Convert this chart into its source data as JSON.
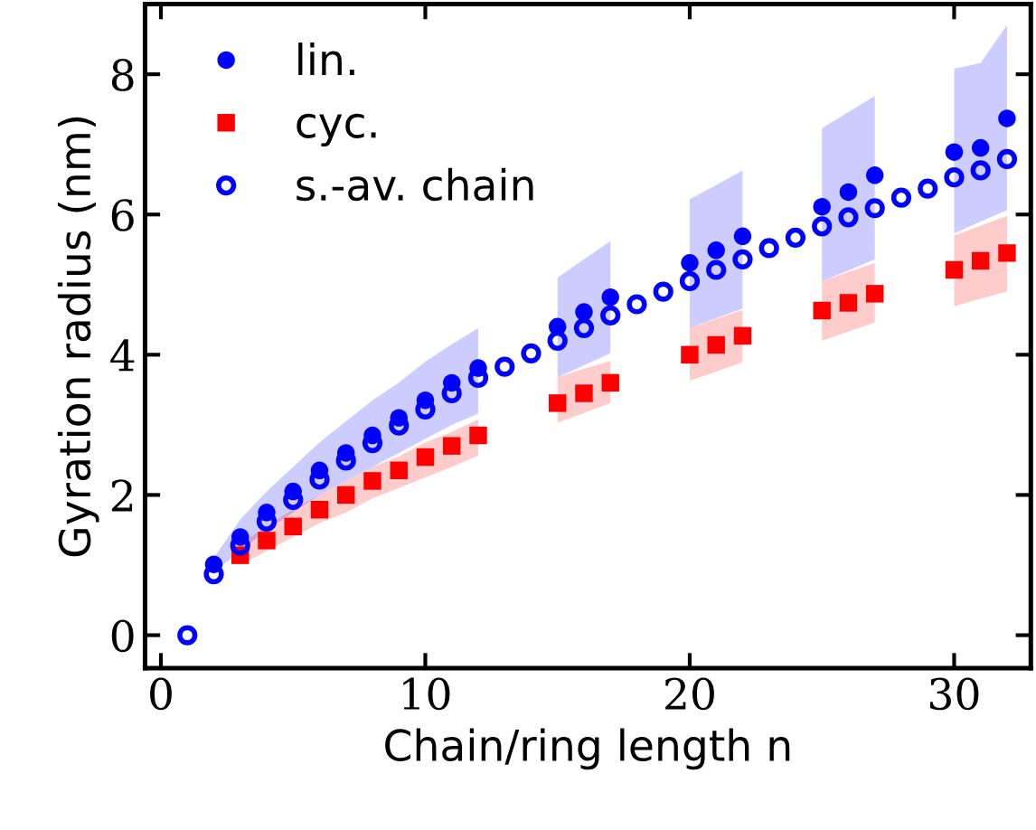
{
  "chart_data": {
    "type": "scatter",
    "xlabel": "Chain/ring length n",
    "ylabel": "Gyration radius (nm)",
    "xlim": [
      -0.6,
      32.9
    ],
    "ylim": [
      -0.47,
      9.0
    ],
    "xticks": [
      0,
      10,
      20,
      30
    ],
    "yticks": [
      0,
      2,
      4,
      6,
      8
    ],
    "grid": false,
    "legend": "top left",
    "series": [
      {
        "name": "lin.",
        "color": "#0000ff",
        "marker": "circle",
        "x": [
          2,
          3,
          4,
          5,
          6,
          7,
          8,
          9,
          10,
          11,
          12,
          15,
          16,
          17,
          20,
          21,
          22,
          25,
          26,
          27,
          30,
          31,
          32
        ],
        "values": [
          1.01,
          1.4,
          1.75,
          2.05,
          2.35,
          2.6,
          2.85,
          3.1,
          3.35,
          3.6,
          3.81,
          4.4,
          4.61,
          4.82,
          5.31,
          5.49,
          5.69,
          6.11,
          6.32,
          6.56,
          6.89,
          6.95,
          7.37
        ],
        "lower": [
          0.9,
          1.2,
          1.5,
          1.75,
          2.0,
          2.2,
          2.4,
          2.6,
          2.8,
          3.0,
          3.16,
          3.68,
          3.85,
          4.02,
          4.38,
          4.52,
          4.66,
          5.05,
          5.2,
          5.36,
          5.73,
          5.9,
          6.06
        ],
        "upper": [
          1.1,
          1.65,
          2.05,
          2.4,
          2.75,
          3.05,
          3.35,
          3.6,
          3.9,
          4.15,
          4.38,
          5.1,
          5.36,
          5.62,
          6.22,
          6.42,
          6.63,
          7.23,
          7.46,
          7.69,
          8.08,
          8.16,
          8.7
        ]
      },
      {
        "name": "cyc.",
        "color": "#ff0000",
        "marker": "square",
        "x": [
          3,
          4,
          5,
          6,
          7,
          8,
          9,
          10,
          11,
          12,
          15,
          16,
          17,
          20,
          21,
          22,
          25,
          26,
          27,
          30,
          31,
          32
        ],
        "values": [
          1.14,
          1.35,
          1.55,
          1.79,
          2.0,
          2.2,
          2.35,
          2.54,
          2.7,
          2.85,
          3.31,
          3.45,
          3.6,
          4.0,
          4.14,
          4.27,
          4.63,
          4.74,
          4.87,
          5.21,
          5.34,
          5.45
        ],
        "lower": [
          1.0,
          1.2,
          1.4,
          1.6,
          1.75,
          1.95,
          2.1,
          2.25,
          2.4,
          2.56,
          3.03,
          3.17,
          3.31,
          3.63,
          3.76,
          3.89,
          4.2,
          4.33,
          4.46,
          4.69,
          4.8,
          4.9
        ],
        "upper": [
          1.3,
          1.55,
          1.8,
          2.0,
          2.2,
          2.4,
          2.55,
          2.75,
          2.9,
          3.08,
          3.68,
          3.8,
          3.91,
          4.38,
          4.51,
          4.64,
          5.05,
          5.18,
          5.31,
          5.7,
          5.84,
          5.98
        ]
      },
      {
        "name": "s.-av. chain",
        "color": "#0000ff",
        "marker": "circle",
        "x": [
          1,
          2,
          3,
          4,
          5,
          6,
          7,
          8,
          9,
          10,
          11,
          12,
          13,
          14,
          15,
          16,
          17,
          18,
          19,
          20,
          21,
          22,
          23,
          24,
          25,
          26,
          27,
          28,
          29,
          30,
          31,
          32
        ],
        "values": [
          0,
          0.87,
          1.28,
          1.62,
          1.93,
          2.22,
          2.49,
          2.74,
          2.99,
          3.22,
          3.45,
          3.67,
          3.83,
          4.02,
          4.2,
          4.38,
          4.56,
          4.72,
          4.9,
          5.05,
          5.21,
          5.36,
          5.52,
          5.67,
          5.83,
          5.96,
          6.09,
          6.24,
          6.37,
          6.53,
          6.63,
          6.79
        ]
      }
    ]
  }
}
